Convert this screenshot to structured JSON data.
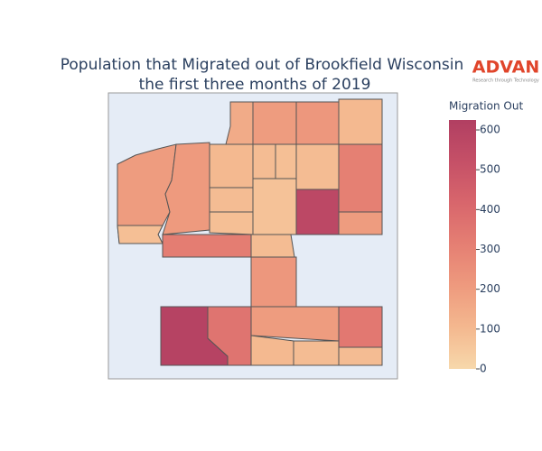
{
  "logo": {
    "name": "ADVAN",
    "tagline": "Research through Technology"
  },
  "chart_data": {
    "type": "choropleth",
    "title": "Population that Migrated out of Brookfield Wisconsin",
    "subtitle": "the first three months of 2019",
    "values": [
      150,
      200,
      220,
      100,
      200,
      80,
      210,
      100,
      90,
      80,
      90,
      310,
      90,
      80,
      70,
      570,
      200,
      320,
      90,
      220,
      600,
      360,
      200,
      100,
      90,
      340,
      90
    ],
    "colorbar": {
      "title": "Migration Out",
      "lim": [
        0,
        625
      ],
      "ticks": [
        0,
        100,
        200,
        300,
        400,
        500,
        600
      ],
      "colors": [
        "#f7d8ab",
        "#f4b88f",
        "#ee9a7e",
        "#e57f73",
        "#d8666c",
        "#c55067",
        "#b13f62"
      ]
    }
  }
}
